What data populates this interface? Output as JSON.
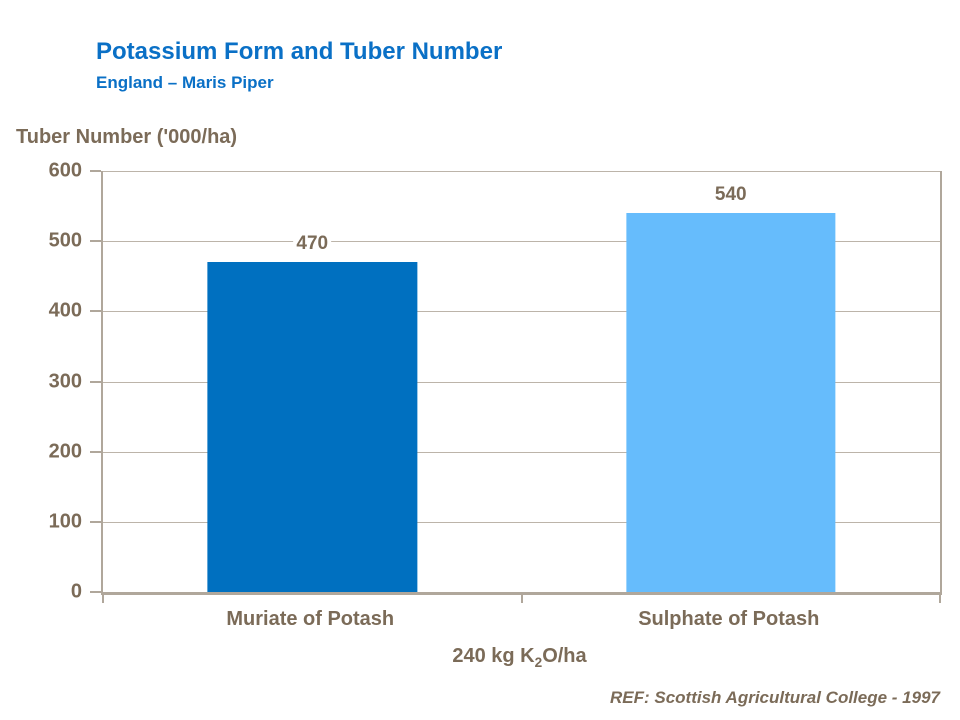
{
  "slide": {
    "title": "Potassium Form and Tuber Number",
    "subtitle": "England – Maris Piper",
    "reference": "REF: Scottish Agricultural College - 1997"
  },
  "chart_data": {
    "type": "bar",
    "title": "Potassium Form and Tuber Number",
    "subtitle": "England – Maris Piper",
    "ylabel": "Tuber Number ('000/ha)",
    "xlabel": "240 kg K2O/ha",
    "xlabel_parts": {
      "prefix": "240 kg K",
      "subscript": "2",
      "suffix": "O/ha"
    },
    "categories": [
      "Muriate of Potash",
      "Sulphate of Potash"
    ],
    "values": [
      470,
      540
    ],
    "bar_colors": [
      "#0070C0",
      "#66BCFC"
    ],
    "ylim": [
      0,
      600
    ],
    "yticks": [
      0,
      100,
      200,
      300,
      400,
      500,
      600
    ],
    "grid": true,
    "legend": false,
    "annotation": "REF: Scottish Agricultural College - 1997"
  },
  "colors": {
    "background": "#FFFFFF",
    "title": "#0A70C6",
    "text": "#7B6B58",
    "axis": "#B0A79B",
    "grid": "#BCB4A9"
  }
}
